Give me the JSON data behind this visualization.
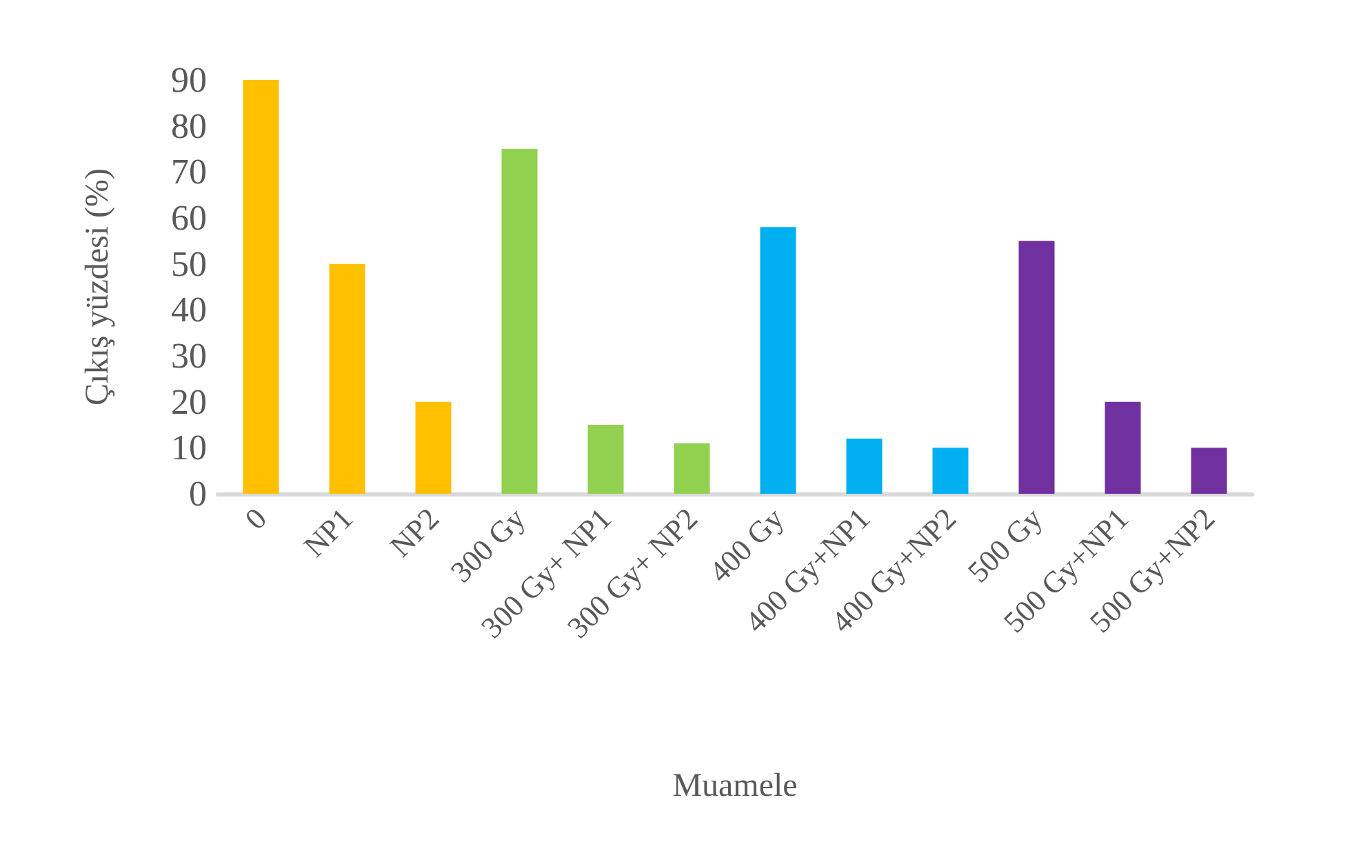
{
  "chart_data": {
    "type": "bar",
    "xlabel": "Muamele",
    "ylabel": "Çıkış yüzdesi (%)",
    "categories": [
      "0",
      "NP1",
      "NP2",
      "300 Gy",
      "300 Gy+ NP1",
      "300 Gy+ NP2",
      "400 Gy",
      "400 Gy+NP1",
      "400 Gy+NP2",
      "500 Gy",
      "500 Gy+NP1",
      "500 Gy+NP2"
    ],
    "values": [
      90,
      50,
      20,
      75,
      15,
      11,
      58,
      12,
      10,
      55,
      20,
      10
    ],
    "colors": [
      "#ffc000",
      "#ffc000",
      "#ffc000",
      "#92d050",
      "#92d050",
      "#92d050",
      "#00b0f0",
      "#00b0f0",
      "#00b0f0",
      "#7030a0",
      "#7030a0",
      "#7030a0"
    ],
    "ylim": [
      0,
      90
    ],
    "yticks": [
      0,
      10,
      20,
      30,
      40,
      50,
      60,
      70,
      80,
      90
    ]
  }
}
